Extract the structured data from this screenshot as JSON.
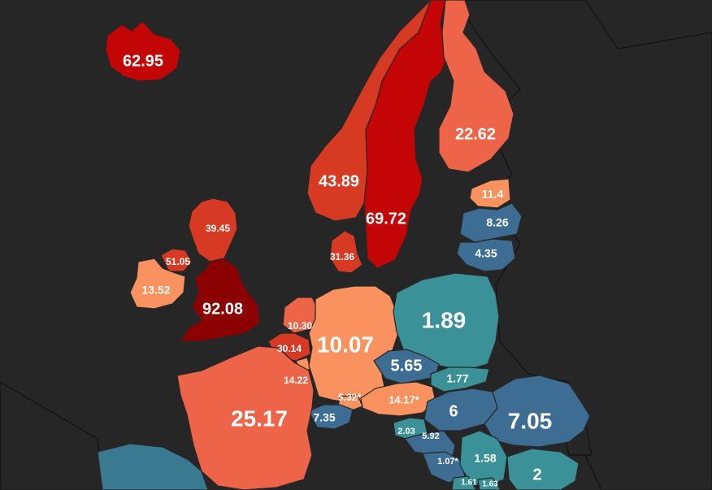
{
  "colors": {
    "background": "#262626",
    "darkest_red": "#8b0000",
    "dark_red": "#c40505",
    "red": "#d63a22",
    "orange_red": "#ed6448",
    "orange": "#f9925e",
    "steel_blue": "#3e6d93",
    "teal": "#3a9197"
  },
  "regions": {
    "iceland": {
      "value": "62.95"
    },
    "norway": {
      "value": "43.89"
    },
    "sweden": {
      "value": "69.72"
    },
    "finland": {
      "value": "22.62"
    },
    "estonia": {
      "value": "11.4"
    },
    "latvia": {
      "value": "8.26"
    },
    "lithuania": {
      "value": "4.35"
    },
    "scotland": {
      "value": "39.45"
    },
    "northern_ireland": {
      "value": "51.05"
    },
    "ireland": {
      "value": "13.52"
    },
    "england": {
      "value": "92.08"
    },
    "denmark": {
      "value": "31.36"
    },
    "netherlands": {
      "value": "10.30"
    },
    "belgium": {
      "value": "30.14"
    },
    "luxembourg": {
      "value": "14.22"
    },
    "germany": {
      "value": "10.07"
    },
    "poland": {
      "value": "1.89"
    },
    "czechia": {
      "value": "5.65"
    },
    "slovakia": {
      "value": "1.77"
    },
    "austria": {
      "value": "14.17*"
    },
    "liechtenstein": {
      "value": "5.32*"
    },
    "switzerland": {
      "value": "7.35"
    },
    "france": {
      "value": "25.17"
    },
    "hungary": {
      "value": "6"
    },
    "romania": {
      "value": "7.05"
    },
    "slovenia": {
      "value": "2.03"
    },
    "croatia": {
      "value": "5.92"
    },
    "bosnia": {
      "value": "1.07*"
    },
    "serbia": {
      "value": "1.58"
    },
    "bulgaria": {
      "value": "2"
    },
    "montenegro": {
      "value": "1.61"
    },
    "kosovo": {
      "value": "1.63"
    }
  }
}
